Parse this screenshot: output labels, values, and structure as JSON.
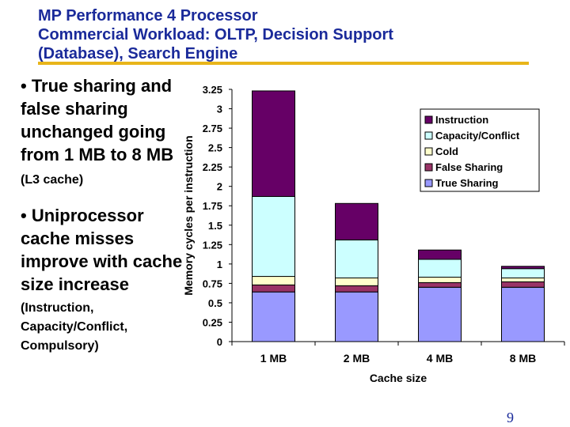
{
  "slide": {
    "title_lines": [
      "MP Performance 4 Processor",
      "Commercial Workload: OLTP, Decision Support",
      "(Database), Search Engine"
    ],
    "bullet1": {
      "text": "• True sharing and false sharing unchanged going from 1 MB to 8 MB ",
      "small": "(L3 cache)"
    },
    "bullet2": {
      "text": "• Uniprocessor cache misses improve with cache size increase",
      "small": "(Instruction, Capacity/Conflict, Compulsory)"
    },
    "page_number": "9"
  },
  "chart_data": {
    "type": "bar",
    "stacked": true,
    "title": "",
    "xlabel": "Cache size",
    "ylabel": "Memory cycles per instruction",
    "categories": [
      "1 MB",
      "2 MB",
      "4 MB",
      "8 MB"
    ],
    "ylim": [
      0,
      3.25
    ],
    "yticks": [
      "0",
      "0.25",
      "0.5",
      "0.75",
      "1",
      "1.25",
      "1.5",
      "1.75",
      "2",
      "2.25",
      "2.5",
      "2.75",
      "3",
      "3.25"
    ],
    "series": [
      {
        "name": "True Sharing",
        "color": "#9999ff",
        "values": [
          0.64,
          0.64,
          0.7,
          0.7
        ]
      },
      {
        "name": "False Sharing",
        "color": "#993366",
        "values": [
          0.09,
          0.08,
          0.06,
          0.07
        ]
      },
      {
        "name": "Cold",
        "color": "#ffffcc",
        "values": [
          0.11,
          0.1,
          0.07,
          0.05
        ]
      },
      {
        "name": "Capacity/Conflict",
        "color": "#ccffff",
        "values": [
          1.03,
          0.49,
          0.23,
          0.12
        ]
      },
      {
        "name": "Instruction",
        "color": "#660066",
        "values": [
          1.36,
          0.47,
          0.12,
          0.03
        ]
      }
    ],
    "legend_order": [
      "Instruction",
      "Capacity/Conflict",
      "Cold",
      "False Sharing",
      "True Sharing"
    ],
    "legend_position": "top-right",
    "grid": false
  }
}
